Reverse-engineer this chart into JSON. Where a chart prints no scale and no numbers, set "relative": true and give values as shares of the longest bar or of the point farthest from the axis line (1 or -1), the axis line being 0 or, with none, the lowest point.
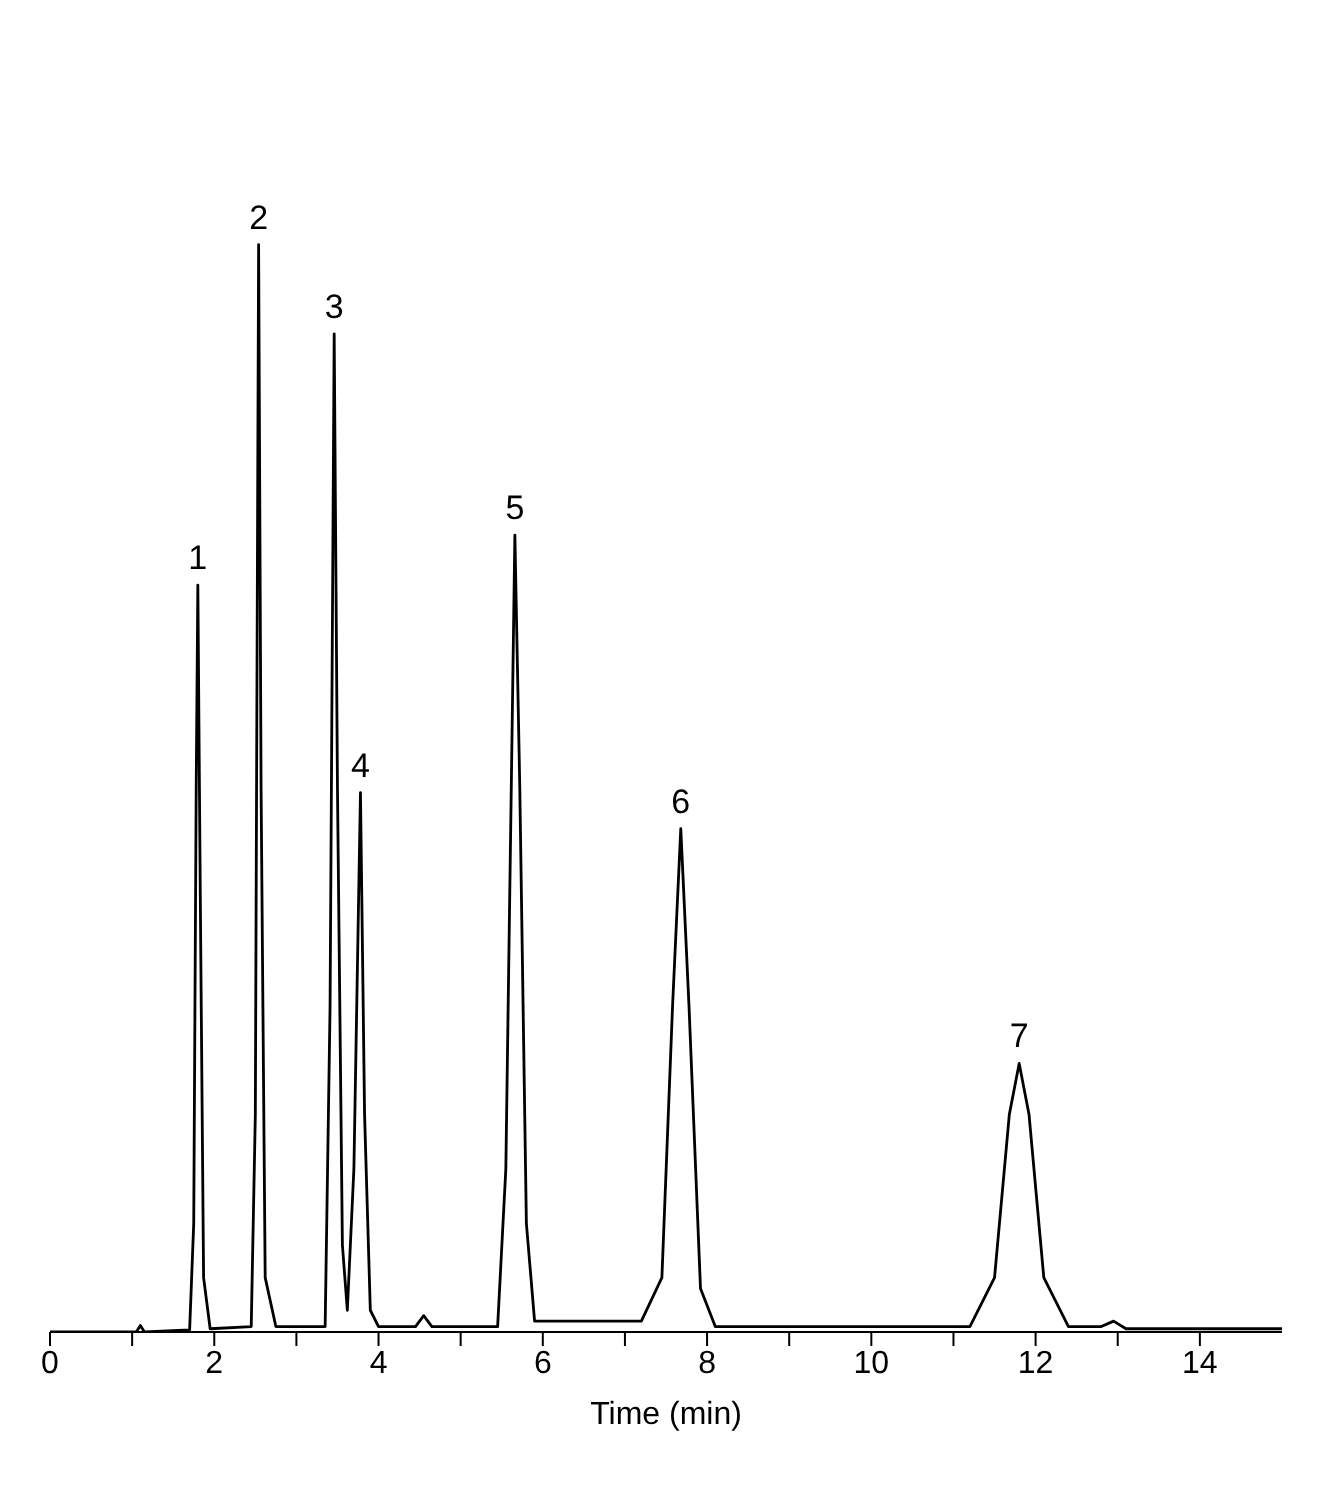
{
  "chart_data": {
    "type": "line",
    "relative": true,
    "xlabel": "Time (min)",
    "color": "#000000",
    "x": [
      0,
      1.05,
      1.1,
      1.15,
      1.7,
      1.75,
      1.78,
      1.8,
      1.83,
      1.87,
      1.95,
      2.45,
      2.5,
      2.54,
      2.57,
      2.62,
      2.75,
      3.35,
      3.41,
      3.46,
      3.5,
      3.56,
      3.62,
      3.7,
      3.78,
      3.83,
      3.9,
      4.0,
      4.45,
      4.55,
      4.65,
      5.45,
      5.55,
      5.66,
      5.72,
      5.8,
      5.9,
      7.2,
      7.45,
      7.58,
      7.68,
      7.78,
      7.92,
      8.1,
      11.2,
      11.5,
      11.68,
      11.8,
      11.92,
      12.1,
      12.4,
      12.8,
      12.95,
      13.1,
      15
    ],
    "values": [
      0,
      0,
      0.006,
      0,
      0.002,
      0.1,
      0.5,
      0.687,
      0.4,
      0.05,
      0.003,
      0.005,
      0.2,
      1,
      0.5,
      0.05,
      0.005,
      0.005,
      0.3,
      0.918,
      0.5,
      0.08,
      0.02,
      0.15,
      0.496,
      0.2,
      0.02,
      0.005,
      0.005,
      0.015,
      0.005,
      0.005,
      0.15,
      0.733,
      0.5,
      0.1,
      0.01,
      0.01,
      0.05,
      0.3,
      0.463,
      0.3,
      0.04,
      0.005,
      0.005,
      0.05,
      0.2,
      0.247,
      0.2,
      0.05,
      0.005,
      0.005,
      0.01,
      0.003,
      0.003
    ],
    "xlim": [
      0,
      15
    ],
    "xticks": [
      0,
      {
        "value": 1,
        "label": null
      },
      2,
      {
        "value": 3,
        "label": null
      },
      4,
      {
        "value": 5,
        "label": null
      },
      6,
      {
        "value": 7,
        "label": null
      },
      8,
      {
        "value": 9,
        "label": null
      },
      10,
      {
        "value": 11,
        "label": null
      },
      12,
      {
        "value": 13,
        "label": null
      },
      14
    ],
    "grid": false,
    "annotations": [
      {
        "text": "1",
        "x": 1.8,
        "y": 0.687
      },
      {
        "text": "2",
        "x": 2.54,
        "y": 1
      },
      {
        "text": "3",
        "x": 3.46,
        "y": 0.918
      },
      {
        "text": "4",
        "x": 3.78,
        "y": 0.496
      },
      {
        "text": "5",
        "x": 5.66,
        "y": 0.733
      },
      {
        "text": "6",
        "x": 7.68,
        "y": 0.463
      },
      {
        "text": "7",
        "x": 11.8,
        "y": 0.247
      }
    ]
  }
}
